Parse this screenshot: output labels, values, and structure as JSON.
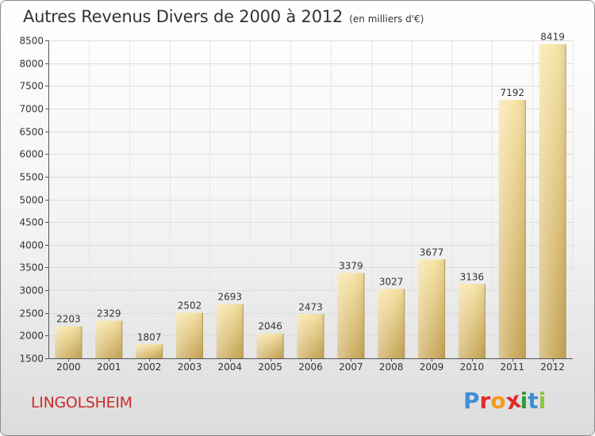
{
  "header": {
    "title": "Autres Revenus Divers de 2000 à 2012",
    "unit": "(en milliers d'€)"
  },
  "footer": {
    "city": "LINGOLSHEIM",
    "logo": "Proxiti",
    "logo_colors": [
      "#3d8fd6",
      "#e3292b",
      "#f59a1b",
      "#e3292b",
      "#2f9d3a",
      "#3d8fd6",
      "#8cc63f"
    ]
  },
  "chart_data": {
    "type": "bar",
    "title": "Autres Revenus Divers de 2000 à 2012",
    "subtitle": "(en milliers d'€)",
    "categories": [
      "2000",
      "2001",
      "2002",
      "2003",
      "2004",
      "2005",
      "2006",
      "2007",
      "2008",
      "2009",
      "2010",
      "2011",
      "2012"
    ],
    "values": [
      2203,
      2329,
      1807,
      2502,
      2693,
      2046,
      2473,
      3379,
      3027,
      3677,
      3136,
      7192,
      8419
    ],
    "ylim": [
      1500,
      8500
    ],
    "yticks": [
      1500,
      2000,
      2500,
      3000,
      3500,
      4000,
      4500,
      5000,
      5500,
      6000,
      6500,
      7000,
      7500,
      8000,
      8500
    ],
    "grid": true,
    "bar_color": "#e2c47a"
  }
}
